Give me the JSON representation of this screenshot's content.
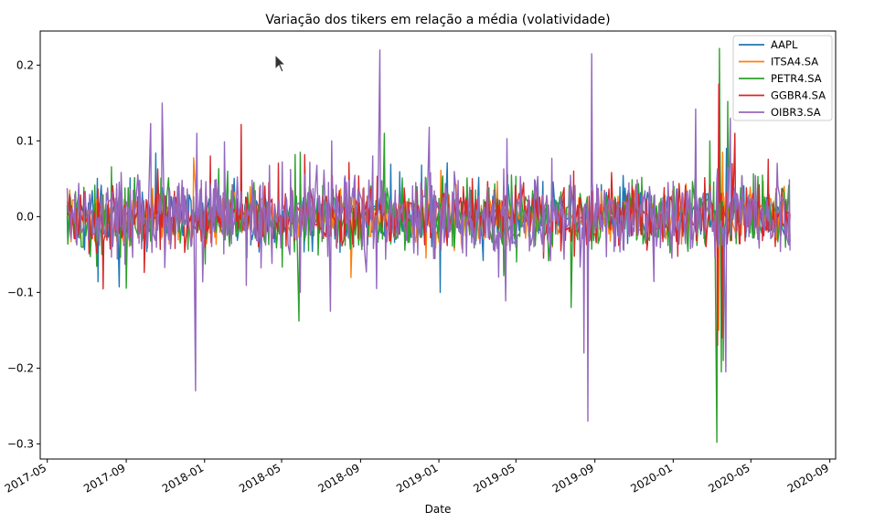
{
  "chart_data": {
    "type": "line",
    "title": "Variação dos tikers em relação a média (volatividade)",
    "xlabel": "Date",
    "ylabel": "",
    "x_start": "2017-06-01",
    "x_end": "2020-07-01",
    "xlim": [
      "2017-04-20",
      "2020-09-10"
    ],
    "ylim": [
      -0.32,
      0.245
    ],
    "x_ticks": [
      "2017-05",
      "2017-09",
      "2018-01",
      "2018-05",
      "2018-09",
      "2019-01",
      "2019-05",
      "2019-09",
      "2020-01",
      "2020-05",
      "2020-09"
    ],
    "y_ticks": [
      {
        "value": 0.2,
        "label": "0.2"
      },
      {
        "value": 0.1,
        "label": "0.1"
      },
      {
        "value": 0.0,
        "label": "0.0"
      },
      {
        "value": -0.1,
        "label": "−0.1"
      },
      {
        "value": -0.2,
        "label": "−0.2"
      },
      {
        "value": -0.3,
        "label": "−0.3"
      }
    ],
    "grid": false,
    "legend_position": "top-right",
    "series": [
      {
        "name": "AAPL",
        "color": "#1f77b4",
        "base_volatility": 0.018,
        "spikes": [
          [
            "2019-01-03",
            -0.1
          ],
          [
            "2018-12-05",
            0.068
          ],
          [
            "2020-03-16",
            -0.13
          ],
          [
            "2020-03-13",
            0.093
          ],
          [
            "2020-03-24",
            0.09
          ],
          [
            "2020-03-20",
            -0.06
          ]
        ]
      },
      {
        "name": "ITSA4.SA",
        "color": "#ff7f0e",
        "base_volatility": 0.016,
        "spikes": [
          [
            "2020-03-12",
            -0.15
          ],
          [
            "2020-03-13",
            0.12
          ],
          [
            "2020-03-18",
            0.085
          ],
          [
            "2020-06-22",
            0.04
          ]
        ]
      },
      {
        "name": "PETR4.SA",
        "color": "#2ca02c",
        "base_volatility": 0.022,
        "spikes": [
          [
            "2018-05-28",
            -0.138
          ],
          [
            "2018-05-30",
            0.085
          ],
          [
            "2018-05-22",
            0.082
          ],
          [
            "2018-10-08",
            0.11
          ],
          [
            "2019-04-12",
            -0.078
          ],
          [
            "2020-03-09",
            -0.298
          ],
          [
            "2020-03-13",
            0.222
          ],
          [
            "2020-03-16",
            -0.205
          ],
          [
            "2020-03-19",
            -0.19
          ],
          [
            "2020-03-26",
            0.152
          ],
          [
            "2020-02-27",
            0.1
          ]
        ]
      },
      {
        "name": "GGBR4.SA",
        "color": "#d62728",
        "base_volatility": 0.02,
        "spikes": [
          [
            "2020-03-12",
            0.175
          ],
          [
            "2020-03-10",
            -0.17
          ],
          [
            "2020-03-17",
            -0.16
          ],
          [
            "2020-04-06",
            0.11
          ],
          [
            "2018-01-10",
            0.08
          ],
          [
            "2017-10-20",
            0.063
          ]
        ]
      },
      {
        "name": "OIBR3.SA",
        "color": "#9467bd",
        "base_volatility": 0.028,
        "spikes": [
          [
            "2017-12-18",
            -0.23
          ],
          [
            "2017-12-20",
            0.11
          ],
          [
            "2017-10-27",
            0.15
          ],
          [
            "2017-10-09",
            0.123
          ],
          [
            "2018-10-01",
            0.22
          ],
          [
            "2018-09-26",
            -0.095
          ],
          [
            "2018-07-16",
            -0.125
          ],
          [
            "2018-07-18",
            0.1
          ],
          [
            "2018-05-30",
            -0.1
          ],
          [
            "2019-08-21",
            -0.27
          ],
          [
            "2019-08-15",
            -0.18
          ],
          [
            "2019-08-27",
            0.215
          ],
          [
            "2018-12-17",
            0.118
          ],
          [
            "2019-06-26",
            0.077
          ],
          [
            "2020-02-05",
            0.142
          ],
          [
            "2020-03-23",
            -0.205
          ],
          [
            "2020-03-30",
            0.13
          ]
        ]
      }
    ]
  }
}
